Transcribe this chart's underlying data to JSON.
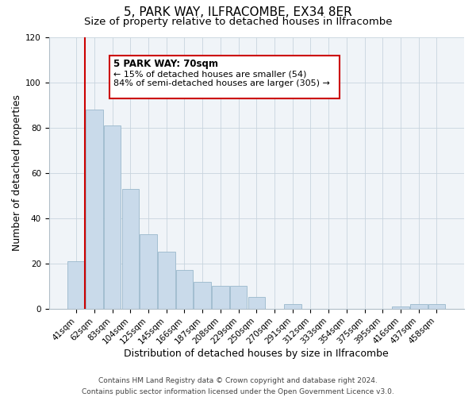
{
  "title": "5, PARK WAY, ILFRACOMBE, EX34 8ER",
  "subtitle": "Size of property relative to detached houses in Ilfracombe",
  "xlabel": "Distribution of detached houses by size in Ilfracombe",
  "ylabel": "Number of detached properties",
  "bar_labels": [
    "41sqm",
    "62sqm",
    "83sqm",
    "104sqm",
    "125sqm",
    "145sqm",
    "166sqm",
    "187sqm",
    "208sqm",
    "229sqm",
    "250sqm",
    "270sqm",
    "291sqm",
    "312sqm",
    "333sqm",
    "354sqm",
    "375sqm",
    "395sqm",
    "416sqm",
    "437sqm",
    "458sqm"
  ],
  "bar_values": [
    21,
    88,
    81,
    53,
    33,
    25,
    17,
    12,
    10,
    10,
    5,
    0,
    2,
    0,
    0,
    0,
    0,
    0,
    1,
    2,
    2
  ],
  "bar_color": "#c9daea",
  "bar_edge_color": "#9ab8cc",
  "vline_color": "#cc0000",
  "ylim": [
    0,
    120
  ],
  "yticks": [
    0,
    20,
    40,
    60,
    80,
    100,
    120
  ],
  "annotation_title": "5 PARK WAY: 70sqm",
  "annotation_line1": "← 15% of detached houses are smaller (54)",
  "annotation_line2": "84% of semi-detached houses are larger (305) →",
  "annotation_box_color": "#ffffff",
  "annotation_box_edge": "#cc0000",
  "footer_line1": "Contains HM Land Registry data © Crown copyright and database right 2024.",
  "footer_line2": "Contains public sector information licensed under the Open Government Licence v3.0.",
  "title_fontsize": 11,
  "subtitle_fontsize": 9.5,
  "xlabel_fontsize": 9,
  "ylabel_fontsize": 9,
  "footer_fontsize": 6.5,
  "tick_fontsize": 7.5,
  "annot_fontsize": 8,
  "annot_title_fontsize": 8.5
}
